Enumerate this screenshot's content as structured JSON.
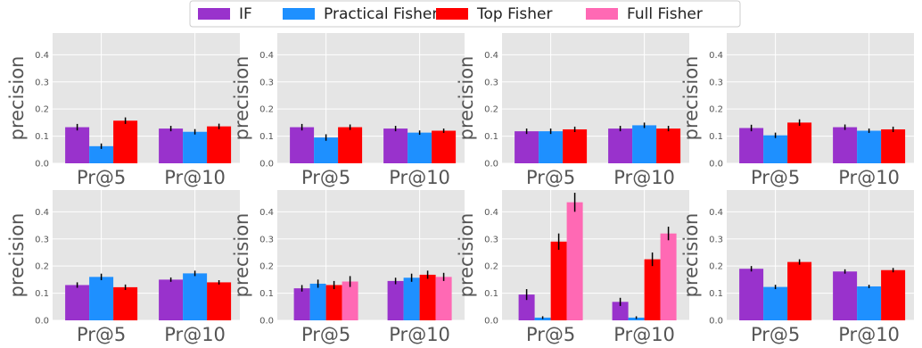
{
  "chart_data": {
    "type": "bar",
    "layout": "grid 2x4",
    "grid": true,
    "legend": {
      "placement": "top-center",
      "entries": [
        {
          "name": "IF",
          "color": "#9932CC"
        },
        {
          "name": "Practical Fisher",
          "color": "#1E90FF"
        },
        {
          "name": "Top Fisher",
          "color": "#FF0000"
        },
        {
          "name": "Full Fisher",
          "color": "#FF69B4"
        }
      ]
    },
    "ylabel": "precision",
    "yticks": [
      "0.0",
      "0.1",
      "0.2",
      "0.3",
      "0.4"
    ],
    "ylim": [
      0,
      0.48
    ],
    "categories": [
      "Pr@5",
      "Pr@10"
    ],
    "panels": [
      {
        "series": [
          {
            "name": "IF",
            "values": [
              0.133,
              0.128
            ],
            "errors": [
              0.012,
              0.01
            ]
          },
          {
            "name": "Practical Fisher",
            "values": [
              0.063,
              0.116
            ],
            "errors": [
              0.01,
              0.01
            ]
          },
          {
            "name": "Top Fisher",
            "values": [
              0.157,
              0.136
            ],
            "errors": [
              0.012,
              0.01
            ]
          }
        ]
      },
      {
        "series": [
          {
            "name": "IF",
            "values": [
              0.133,
              0.128
            ],
            "errors": [
              0.012,
              0.01
            ]
          },
          {
            "name": "Practical Fisher",
            "values": [
              0.095,
              0.113
            ],
            "errors": [
              0.012,
              0.008
            ]
          },
          {
            "name": "Top Fisher",
            "values": [
              0.133,
              0.12
            ],
            "errors": [
              0.01,
              0.008
            ]
          }
        ]
      },
      {
        "series": [
          {
            "name": "IF",
            "values": [
              0.118,
              0.128
            ],
            "errors": [
              0.01,
              0.01
            ]
          },
          {
            "name": "Practical Fisher",
            "values": [
              0.118,
              0.14
            ],
            "errors": [
              0.01,
              0.01
            ]
          },
          {
            "name": "Top Fisher",
            "values": [
              0.125,
              0.128
            ],
            "errors": [
              0.01,
              0.01
            ]
          }
        ]
      },
      {
        "series": [
          {
            "name": "IF",
            "values": [
              0.13,
              0.133
            ],
            "errors": [
              0.012,
              0.01
            ]
          },
          {
            "name": "Practical Fisher",
            "values": [
              0.103,
              0.12
            ],
            "errors": [
              0.01,
              0.008
            ]
          },
          {
            "name": "Top Fisher",
            "values": [
              0.15,
              0.125
            ],
            "errors": [
              0.012,
              0.01
            ]
          }
        ]
      },
      {
        "series": [
          {
            "name": "IF",
            "values": [
              0.13,
              0.15
            ],
            "errors": [
              0.01,
              0.008
            ]
          },
          {
            "name": "Practical Fisher",
            "values": [
              0.16,
              0.173
            ],
            "errors": [
              0.012,
              0.01
            ]
          },
          {
            "name": "Top Fisher",
            "values": [
              0.122,
              0.14
            ],
            "errors": [
              0.01,
              0.008
            ]
          }
        ]
      },
      {
        "series": [
          {
            "name": "IF",
            "values": [
              0.118,
              0.145
            ],
            "errors": [
              0.012,
              0.012
            ]
          },
          {
            "name": "Practical Fisher",
            "values": [
              0.135,
              0.157
            ],
            "errors": [
              0.015,
              0.015
            ]
          },
          {
            "name": "Top Fisher",
            "values": [
              0.13,
              0.168
            ],
            "errors": [
              0.015,
              0.015
            ]
          },
          {
            "name": "Full Fisher",
            "values": [
              0.143,
              0.16
            ],
            "errors": [
              0.02,
              0.015
            ]
          }
        ]
      },
      {
        "series": [
          {
            "name": "IF",
            "values": [
              0.095,
              0.068
            ],
            "errors": [
              0.02,
              0.015
            ]
          },
          {
            "name": "Practical Fisher",
            "values": [
              0.01,
              0.01
            ],
            "errors": [
              0.005,
              0.005
            ]
          },
          {
            "name": "Top Fisher",
            "values": [
              0.29,
              0.225
            ],
            "errors": [
              0.03,
              0.025
            ]
          },
          {
            "name": "Full Fisher",
            "values": [
              0.435,
              0.32
            ],
            "errors": [
              0.035,
              0.025
            ]
          }
        ]
      },
      {
        "series": [
          {
            "name": "IF",
            "values": [
              0.19,
              0.18
            ],
            "errors": [
              0.01,
              0.008
            ]
          },
          {
            "name": "Practical Fisher",
            "values": [
              0.123,
              0.125
            ],
            "errors": [
              0.008,
              0.006
            ]
          },
          {
            "name": "Top Fisher",
            "values": [
              0.215,
              0.185
            ],
            "errors": [
              0.01,
              0.008
            ]
          }
        ]
      }
    ]
  }
}
